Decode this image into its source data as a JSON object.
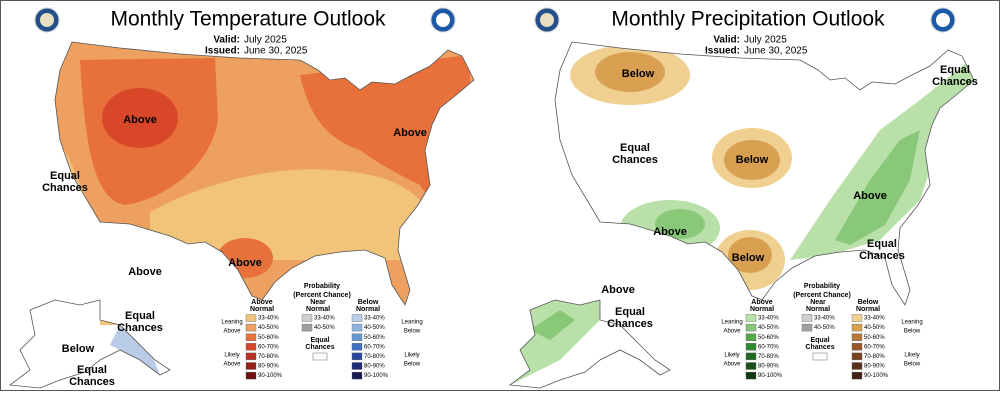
{
  "maps": [
    {
      "title": "Monthly Temperature Outlook",
      "valid_label": "Valid:",
      "valid": "July 2025",
      "issued_label": "Issued:",
      "issued": "June 30, 2025",
      "labels": [
        {
          "lines": [
            "Above"
          ]
        },
        {
          "lines": [
            "Above"
          ]
        },
        {
          "lines": [
            "Equal",
            "Chances"
          ]
        },
        {
          "lines": [
            "Above"
          ]
        },
        {
          "lines": [
            "Above"
          ]
        },
        {
          "lines": [
            "Equal",
            "Chances"
          ]
        },
        {
          "lines": [
            "Below"
          ]
        },
        {
          "lines": [
            "Equal",
            "Chances"
          ]
        }
      ],
      "legend": {
        "title": "Probability",
        "subtitle": "(Percent Chance)",
        "above_header": [
          "Above",
          "Normal"
        ],
        "near_header": [
          "Near",
          "Normal"
        ],
        "below_header": [
          "Below",
          "Normal"
        ],
        "leaning_above": [
          "Leaning",
          "Above"
        ],
        "likely_above": [
          "Likely",
          "Above"
        ],
        "leaning_below": [
          "Leaning",
          "Below"
        ],
        "likely_below": [
          "Likely",
          "Below"
        ],
        "equal": [
          "Equal",
          "Chances"
        ],
        "above": [
          {
            "label": "33-40%",
            "color": "#f2c47a"
          },
          {
            "label": "40-50%",
            "color": "#eda060"
          },
          {
            "label": "50-60%",
            "color": "#e8703a"
          },
          {
            "label": "60-70%",
            "color": "#d84828"
          },
          {
            "label": "70-80%",
            "color": "#b83020"
          },
          {
            "label": "80-90%",
            "color": "#962018"
          },
          {
            "label": "90-100%",
            "color": "#6e1010"
          }
        ],
        "near": [
          {
            "label": "33-40%",
            "color": "#d0d0d0"
          },
          {
            "label": "40-50%",
            "color": "#a0a0a0"
          }
        ],
        "below": [
          {
            "label": "33-40%",
            "color": "#b8cce8"
          },
          {
            "label": "40-50%",
            "color": "#90b0e0"
          },
          {
            "label": "50-60%",
            "color": "#6898d0"
          },
          {
            "label": "60-70%",
            "color": "#4070c0"
          },
          {
            "label": "70-80%",
            "color": "#2848a0"
          },
          {
            "label": "80-90%",
            "color": "#202878"
          },
          {
            "label": "90-100%",
            "color": "#181850"
          }
        ]
      }
    },
    {
      "title": "Monthly Precipitation Outlook",
      "valid_label": "Valid:",
      "valid": "July 2025",
      "issued_label": "Issued:",
      "issued": "June 30, 2025",
      "labels": [
        {
          "lines": [
            "Below"
          ]
        },
        {
          "lines": [
            "Equal",
            "Chances"
          ]
        },
        {
          "lines": [
            "Equal",
            "Chances"
          ]
        },
        {
          "lines": [
            "Below"
          ]
        },
        {
          "lines": [
            "Above"
          ]
        },
        {
          "lines": [
            "Above"
          ]
        },
        {
          "lines": [
            "Below"
          ]
        },
        {
          "lines": [
            "Equal",
            "Chances"
          ]
        },
        {
          "lines": [
            "Above"
          ]
        },
        {
          "lines": [
            "Equal",
            "Chances"
          ]
        }
      ],
      "legend": {
        "title": "Probability",
        "subtitle": "(Percent Chance)",
        "above_header": [
          "Above",
          "Normal"
        ],
        "near_header": [
          "Near",
          "Normal"
        ],
        "below_header": [
          "Below",
          "Normal"
        ],
        "leaning_above": [
          "Leaning",
          "Above"
        ],
        "likely_above": [
          "Likely",
          "Above"
        ],
        "leaning_below": [
          "Leaning",
          "Below"
        ],
        "likely_below": [
          "Likely",
          "Below"
        ],
        "equal": [
          "Equal",
          "Chances"
        ],
        "above": [
          {
            "label": "33-40%",
            "color": "#b8e0a8"
          },
          {
            "label": "40-50%",
            "color": "#88c878"
          },
          {
            "label": "50-60%",
            "color": "#50a848"
          },
          {
            "label": "60-70%",
            "color": "#308830"
          },
          {
            "label": "70-80%",
            "color": "#206820"
          },
          {
            "label": "80-90%",
            "color": "#185018"
          },
          {
            "label": "90-100%",
            "color": "#103810"
          }
        ],
        "near": [
          {
            "label": "33-40%",
            "color": "#d0d0d0"
          },
          {
            "label": "40-50%",
            "color": "#a0a0a0"
          }
        ],
        "below": [
          {
            "label": "33-40%",
            "color": "#f0d090"
          },
          {
            "label": "40-50%",
            "color": "#d8a050"
          },
          {
            "label": "50-60%",
            "color": "#b87838"
          },
          {
            "label": "60-70%",
            "color": "#985828"
          },
          {
            "label": "70-80%",
            "color": "#784020"
          },
          {
            "label": "80-90%",
            "color": "#583018"
          },
          {
            "label": "90-100%",
            "color": "#402010"
          }
        ]
      }
    }
  ]
}
